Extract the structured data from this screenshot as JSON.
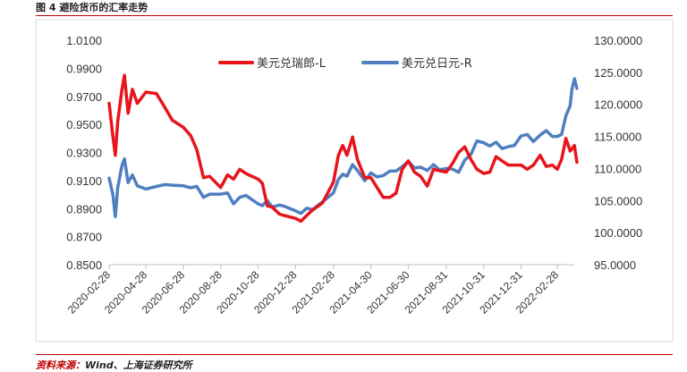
{
  "figure": {
    "title": "图 4  避险货币的汇率走势",
    "source_label": "资料来源：",
    "source_text": "Wind、上海证券研究所"
  },
  "colors": {
    "rule": "#c00000",
    "series_left": "#e8141c",
    "series_right": "#4f7fc0"
  },
  "chart_data": {
    "type": "line",
    "title": "",
    "xlabel": "",
    "ylabel": "",
    "legend_position": "top-center",
    "grid": false,
    "x_ticks": [
      "2020-02-28",
      "2020-04-28",
      "2020-06-28",
      "2020-08-28",
      "2020-10-28",
      "2020-12-28",
      "2021-02-28",
      "2021-04-30",
      "2021-06-30",
      "2021-08-31",
      "2021-10-31",
      "2021-12-31",
      "2022-02-28"
    ],
    "y_left": {
      "min": 0.85,
      "max": 1.01,
      "ticks": [
        "0.8500",
        "0.8700",
        "0.8900",
        "0.9100",
        "0.9300",
        "0.9500",
        "0.9700",
        "0.9900",
        "1.0100"
      ]
    },
    "y_right": {
      "min": 95,
      "max": 130,
      "ticks": [
        "95.0000",
        "100.0000",
        "105.0000",
        "110.0000",
        "115.0000",
        "120.0000",
        "125.0000",
        "130.0000"
      ]
    },
    "series": [
      {
        "name": "美元兑瑞郎-L",
        "axis": "left",
        "points": [
          [
            "2020-02-28",
            0.965
          ],
          [
            "2020-03-05",
            0.942
          ],
          [
            "2020-03-09",
            0.928
          ],
          [
            "2020-03-13",
            0.952
          ],
          [
            "2020-03-20",
            0.975
          ],
          [
            "2020-03-24",
            0.985
          ],
          [
            "2020-03-30",
            0.958
          ],
          [
            "2020-04-06",
            0.975
          ],
          [
            "2020-04-14",
            0.965
          ],
          [
            "2020-04-28",
            0.973
          ],
          [
            "2020-05-15",
            0.972
          ],
          [
            "2020-05-29",
            0.962
          ],
          [
            "2020-06-10",
            0.953
          ],
          [
            "2020-06-28",
            0.948
          ],
          [
            "2020-07-10",
            0.942
          ],
          [
            "2020-07-20",
            0.932
          ],
          [
            "2020-07-31",
            0.912
          ],
          [
            "2020-08-10",
            0.913
          ],
          [
            "2020-08-28",
            0.905
          ],
          [
            "2020-09-08",
            0.914
          ],
          [
            "2020-09-18",
            0.911
          ],
          [
            "2020-09-28",
            0.918
          ],
          [
            "2020-10-08",
            0.915
          ],
          [
            "2020-10-28",
            0.911
          ],
          [
            "2020-11-04",
            0.908
          ],
          [
            "2020-11-12",
            0.892
          ],
          [
            "2020-11-20",
            0.891
          ],
          [
            "2020-12-02",
            0.886
          ],
          [
            "2020-12-10",
            0.885
          ],
          [
            "2020-12-28",
            0.883
          ],
          [
            "2021-01-06",
            0.881
          ],
          [
            "2021-01-15",
            0.885
          ],
          [
            "2021-01-25",
            0.889
          ],
          [
            "2021-02-10",
            0.894
          ],
          [
            "2021-02-28",
            0.909
          ],
          [
            "2021-03-08",
            0.928
          ],
          [
            "2021-03-15",
            0.935
          ],
          [
            "2021-03-22",
            0.928
          ],
          [
            "2021-03-31",
            0.941
          ],
          [
            "2021-04-08",
            0.925
          ],
          [
            "2021-04-20",
            0.912
          ],
          [
            "2021-04-30",
            0.912
          ],
          [
            "2021-05-10",
            0.905
          ],
          [
            "2021-05-20",
            0.898
          ],
          [
            "2021-05-31",
            0.898
          ],
          [
            "2021-06-10",
            0.901
          ],
          [
            "2021-06-20",
            0.918
          ],
          [
            "2021-06-30",
            0.924
          ],
          [
            "2021-07-10",
            0.916
          ],
          [
            "2021-07-20",
            0.913
          ],
          [
            "2021-07-31",
            0.906
          ],
          [
            "2021-08-10",
            0.918
          ],
          [
            "2021-08-20",
            0.917
          ],
          [
            "2021-08-31",
            0.916
          ],
          [
            "2021-09-10",
            0.922
          ],
          [
            "2021-09-20",
            0.93
          ],
          [
            "2021-09-30",
            0.934
          ],
          [
            "2021-10-10",
            0.925
          ],
          [
            "2021-10-20",
            0.918
          ],
          [
            "2021-10-31",
            0.915
          ],
          [
            "2021-11-10",
            0.916
          ],
          [
            "2021-11-20",
            0.927
          ],
          [
            "2021-11-30",
            0.924
          ],
          [
            "2021-12-10",
            0.921
          ],
          [
            "2021-12-20",
            0.921
          ],
          [
            "2021-12-31",
            0.921
          ],
          [
            "2022-01-10",
            0.918
          ],
          [
            "2022-01-20",
            0.921
          ],
          [
            "2022-01-31",
            0.928
          ],
          [
            "2022-02-10",
            0.92
          ],
          [
            "2022-02-20",
            0.921
          ],
          [
            "2022-02-28",
            0.918
          ],
          [
            "2022-03-07",
            0.925
          ],
          [
            "2022-03-14",
            0.94
          ],
          [
            "2022-03-21",
            0.931
          ],
          [
            "2022-03-28",
            0.935
          ],
          [
            "2022-04-01",
            0.923
          ]
        ]
      },
      {
        "name": "美元兑日元-R",
        "axis": "right",
        "points": [
          [
            "2020-02-28",
            108.5
          ],
          [
            "2020-03-05",
            106.0
          ],
          [
            "2020-03-09",
            102.5
          ],
          [
            "2020-03-13",
            107.0
          ],
          [
            "2020-03-20",
            110.5
          ],
          [
            "2020-03-24",
            111.5
          ],
          [
            "2020-03-30",
            107.8
          ],
          [
            "2020-04-06",
            109.0
          ],
          [
            "2020-04-14",
            107.3
          ],
          [
            "2020-04-28",
            106.8
          ],
          [
            "2020-05-15",
            107.2
          ],
          [
            "2020-05-29",
            107.5
          ],
          [
            "2020-06-10",
            107.4
          ],
          [
            "2020-06-28",
            107.3
          ],
          [
            "2020-07-10",
            107.0
          ],
          [
            "2020-07-20",
            107.2
          ],
          [
            "2020-07-31",
            105.5
          ],
          [
            "2020-08-10",
            106.0
          ],
          [
            "2020-08-28",
            106.0
          ],
          [
            "2020-09-08",
            106.2
          ],
          [
            "2020-09-18",
            104.5
          ],
          [
            "2020-09-28",
            105.5
          ],
          [
            "2020-10-08",
            105.8
          ],
          [
            "2020-10-28",
            104.5
          ],
          [
            "2020-11-04",
            104.2
          ],
          [
            "2020-11-12",
            105.0
          ],
          [
            "2020-11-20",
            104.0
          ],
          [
            "2020-12-02",
            104.3
          ],
          [
            "2020-12-10",
            104.1
          ],
          [
            "2020-12-28",
            103.4
          ],
          [
            "2021-01-06",
            103.0
          ],
          [
            "2021-01-15",
            103.8
          ],
          [
            "2021-01-25",
            103.6
          ],
          [
            "2021-02-10",
            104.8
          ],
          [
            "2021-02-28",
            106.2
          ],
          [
            "2021-03-08",
            108.3
          ],
          [
            "2021-03-15",
            109.1
          ],
          [
            "2021-03-22",
            108.8
          ],
          [
            "2021-03-31",
            110.6
          ],
          [
            "2021-04-08",
            109.7
          ],
          [
            "2021-04-20",
            108.1
          ],
          [
            "2021-04-30",
            109.3
          ],
          [
            "2021-05-10",
            108.7
          ],
          [
            "2021-05-20",
            108.9
          ],
          [
            "2021-05-31",
            109.6
          ],
          [
            "2021-06-10",
            109.6
          ],
          [
            "2021-06-20",
            110.3
          ],
          [
            "2021-06-30",
            111.1
          ],
          [
            "2021-07-10",
            110.1
          ],
          [
            "2021-07-20",
            110.2
          ],
          [
            "2021-07-31",
            109.7
          ],
          [
            "2021-08-10",
            110.6
          ],
          [
            "2021-08-20",
            109.8
          ],
          [
            "2021-08-31",
            110.0
          ],
          [
            "2021-09-10",
            109.9
          ],
          [
            "2021-09-20",
            109.4
          ],
          [
            "2021-09-30",
            111.3
          ],
          [
            "2021-10-10",
            112.2
          ],
          [
            "2021-10-20",
            114.3
          ],
          [
            "2021-10-31",
            114.0
          ],
          [
            "2021-11-10",
            113.5
          ],
          [
            "2021-11-20",
            114.1
          ],
          [
            "2021-11-30",
            113.1
          ],
          [
            "2021-12-10",
            113.4
          ],
          [
            "2021-12-20",
            113.6
          ],
          [
            "2021-12-31",
            115.1
          ],
          [
            "2022-01-10",
            115.3
          ],
          [
            "2022-01-20",
            114.2
          ],
          [
            "2022-01-31",
            115.2
          ],
          [
            "2022-02-10",
            115.9
          ],
          [
            "2022-02-20",
            115.0
          ],
          [
            "2022-02-28",
            115.0
          ],
          [
            "2022-03-07",
            115.3
          ],
          [
            "2022-03-14",
            118.2
          ],
          [
            "2022-03-21",
            119.8
          ],
          [
            "2022-03-24",
            122.4
          ],
          [
            "2022-03-28",
            124.0
          ],
          [
            "2022-04-01",
            122.5
          ]
        ]
      }
    ]
  }
}
